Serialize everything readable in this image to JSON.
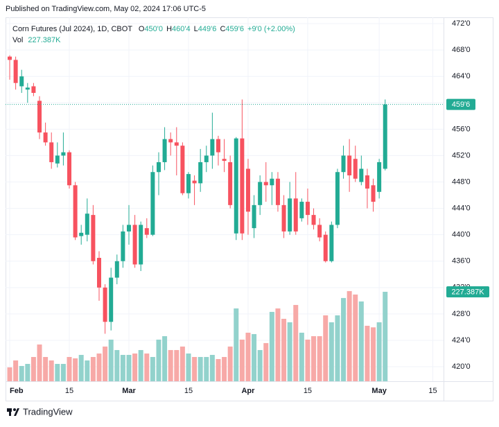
{
  "header": {
    "published": "Published on TradingView.com, May 02, 2024 17:06 UTC-5"
  },
  "chart_data": {
    "type": "candlestick",
    "title": "Corn Futures (Jul 2024), 1D, CBOT",
    "ohlc_legend": [
      {
        "key": "O",
        "text": "450'0"
      },
      {
        "key": "H",
        "text": "460'4"
      },
      {
        "key": "L",
        "text": "449'6"
      },
      {
        "key": "C",
        "text": "459'6"
      }
    ],
    "change": "+9'0 (+2.00%)",
    "volume_title": "Vol",
    "volume_value_label": "227.387K",
    "last_price_label": "459'6",
    "open": [
      467,
      466.5,
      462.5,
      462,
      462.5,
      460.3,
      455.5,
      454,
      450.8,
      452,
      452.5,
      447.5,
      439.8,
      440,
      443,
      436.5,
      432,
      426.8,
      433.5,
      436,
      440.5,
      441.5,
      435.5,
      441,
      440,
      449.5,
      451,
      454.5,
      454,
      453.5,
      446.3,
      448.2,
      447.8,
      451,
      452,
      454.5,
      451.5,
      451,
      440.2,
      454.6,
      450,
      441,
      444.5,
      448,
      447.5,
      448.5,
      444.5,
      440.5,
      445.5,
      442.5,
      445,
      443,
      441.5,
      440,
      436,
      441.5,
      449.5,
      452,
      451.5,
      448,
      449,
      447.5,
      446.5,
      450
    ],
    "high": [
      467.2,
      467,
      465,
      463,
      463,
      461,
      457,
      455.5,
      454,
      455.5,
      452.8,
      448,
      441.5,
      445.5,
      444.5,
      437.5,
      432.5,
      435,
      437,
      441.5,
      444.5,
      443,
      442,
      442.5,
      450.5,
      452.5,
      456.3,
      455.5,
      456.3,
      454,
      449.5,
      449,
      453,
      453.5,
      458.5,
      455,
      454.5,
      452,
      454.8,
      460.5,
      451.5,
      446,
      449,
      451,
      449.5,
      449.5,
      446,
      448,
      449.5,
      445.5,
      447,
      444,
      442.5,
      440.5,
      442,
      450,
      453.5,
      454.5,
      453.5,
      452,
      450,
      448.5,
      451.5,
      460.5
    ],
    "low": [
      463.5,
      462,
      461.5,
      460,
      461,
      454.5,
      453.5,
      450,
      450.2,
      450.5,
      447,
      439.2,
      438.5,
      439,
      435.5,
      430,
      425,
      425.5,
      432.5,
      435,
      438.5,
      435,
      434.5,
      439.5,
      439.8,
      446,
      449.8,
      452,
      449,
      446,
      445.5,
      444.5,
      446.5,
      449.5,
      450,
      450.5,
      449.5,
      444,
      439.2,
      439.2,
      440,
      439.5,
      443,
      445,
      444.5,
      443.5,
      439.5,
      440,
      440,
      442,
      441.5,
      440.8,
      439,
      435.8,
      435.8,
      441,
      448.5,
      446.5,
      448,
      447.5,
      444,
      443.5,
      445.5,
      449.75
    ],
    "close": [
      466.5,
      463,
      464,
      462.3,
      461.5,
      455.5,
      454,
      451,
      452,
      452.5,
      447.5,
      439.6,
      440.3,
      443.2,
      436,
      432,
      426.8,
      433.5,
      436,
      440.5,
      441.5,
      435.5,
      441.5,
      440,
      449.5,
      451,
      454.5,
      454,
      453.5,
      446.3,
      449.2,
      447.8,
      451,
      452,
      454.5,
      452.5,
      451.2,
      444.5,
      454.6,
      440.2,
      443.5,
      444.5,
      448,
      447.5,
      448.5,
      444.5,
      440.5,
      445.5,
      440.5,
      445,
      443,
      441.5,
      439.6,
      436,
      441.5,
      449.5,
      452,
      449,
      448.5,
      450,
      447,
      445,
      451,
      459.75
    ],
    "volume": [
      35.3,
      52.9,
      38.8,
      44.1,
      61.7,
      93.4,
      61.7,
      52.9,
      44.1,
      44.1,
      61.7,
      58.2,
      67,
      52.9,
      61.7,
      70.5,
      88.2,
      105.8,
      79.3,
      67,
      67,
      70.5,
      79.3,
      70.5,
      61.7,
      105.8,
      114.6,
      79.3,
      79.3,
      88.2,
      70.5,
      61.7,
      61.7,
      61.7,
      67,
      56.4,
      61.7,
      88.2,
      185.1,
      105.8,
      123.4,
      119.9,
      79.3,
      97,
      176.3,
      185.1,
      158.7,
      149.9,
      193.9,
      123.4,
      105.8,
      114.6,
      114.6,
      167.5,
      149.9,
      167.5,
      211.6,
      229.2,
      220.4,
      202.8,
      141,
      137,
      149.9,
      227.387
    ],
    "up_color": "#22ab94",
    "down_color": "#f7525f",
    "up_volume_color": "#92d2cc",
    "down_volume_color": "#f7a9a7",
    "ylim": [
      417.8,
      472.95
    ],
    "yticks": [
      {
        "value": 420,
        "label": "420'0"
      },
      {
        "value": 424,
        "label": "424'0"
      },
      {
        "value": 428,
        "label": "428'0"
      },
      {
        "value": 432,
        "label": "432'0"
      },
      {
        "value": 436,
        "label": "436'0"
      },
      {
        "value": 440,
        "label": "440'0"
      },
      {
        "value": 444,
        "label": "444'0"
      },
      {
        "value": 448,
        "label": "448'0"
      },
      {
        "value": 452,
        "label": "452'0"
      },
      {
        "value": 456,
        "label": "456'0"
      },
      {
        "value": 460,
        "label": "460'0"
      },
      {
        "value": 464,
        "label": "464'0"
      },
      {
        "value": 468,
        "label": "468'0"
      },
      {
        "value": 472,
        "label": "472'0"
      }
    ],
    "volume_ylim": [
      0,
      925
    ],
    "xlim": [
      -0.7,
      72.8
    ],
    "xticks": [
      {
        "value": 0,
        "label": "Feb"
      },
      {
        "value": 10,
        "label": "15"
      },
      {
        "value": 20,
        "label": "Mar"
      },
      {
        "value": 30,
        "label": "15"
      },
      {
        "value": 40,
        "label": "Apr"
      },
      {
        "value": 50,
        "label": "15"
      },
      {
        "value": 62,
        "label": "May"
      },
      {
        "value": 71,
        "label": "15"
      }
    ],
    "grid": true
  },
  "footer": {
    "brand": "TradingView"
  }
}
